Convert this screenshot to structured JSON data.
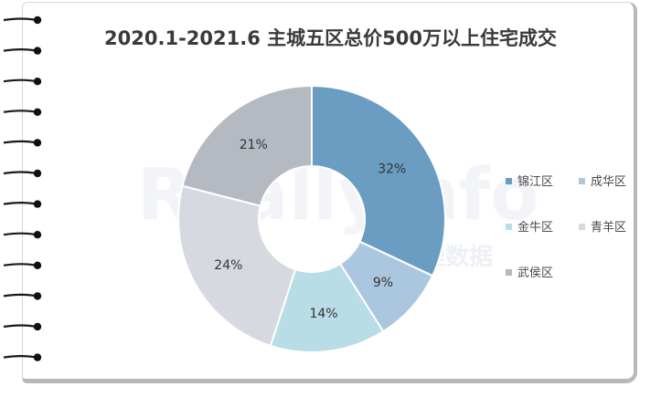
{
  "chart_data": {
    "type": "pie",
    "subtype": "donut",
    "title": "2020.1-2021.6 主城五区总价500万以上住宅成交",
    "categories": [
      "锦江区",
      "成华区",
      "金牛区",
      "青羊区",
      "武侯区"
    ],
    "values": [
      32,
      9,
      14,
      24,
      21
    ],
    "value_labels": [
      "32%",
      "9%",
      "14%",
      "24%",
      "21%"
    ],
    "colors": [
      "#6b9dc2",
      "#abc7df",
      "#b8dde6",
      "#d6d9df",
      "#b4b9c2"
    ],
    "legend": "right"
  },
  "watermark": {
    "text_en": "Reallyinfo",
    "text_cn": "锐理数据"
  }
}
